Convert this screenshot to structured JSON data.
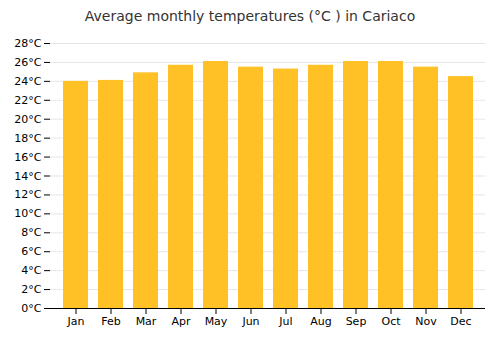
{
  "chart_data": {
    "type": "bar",
    "title": "Average monthly temperatures (°C ) in Cariaco",
    "categories": [
      "Jan",
      "Feb",
      "Mar",
      "Apr",
      "May",
      "Jun",
      "Jul",
      "Aug",
      "Sep",
      "Oct",
      "Nov",
      "Dec"
    ],
    "values": [
      24.0,
      24.1,
      24.9,
      25.7,
      26.1,
      25.5,
      25.3,
      25.7,
      26.1,
      26.1,
      25.5,
      24.5
    ],
    "color": "#FFC125",
    "ylim": [
      0,
      28
    ],
    "yticks": [
      {
        "value": 0,
        "label": "0°C"
      },
      {
        "value": 2,
        "label": "2°C"
      },
      {
        "value": 4,
        "label": "4°C"
      },
      {
        "value": 6,
        "label": "6°C"
      },
      {
        "value": 8,
        "label": "8°C"
      },
      {
        "value": 10,
        "label": "10°C"
      },
      {
        "value": 12,
        "label": "12°C"
      },
      {
        "value": 14,
        "label": "14°C"
      },
      {
        "value": 16,
        "label": "16°C"
      },
      {
        "value": 18,
        "label": "18°C"
      },
      {
        "value": 20,
        "label": "20°C"
      },
      {
        "value": 22,
        "label": "22°C"
      },
      {
        "value": 24,
        "label": "24°C"
      },
      {
        "value": 26,
        "label": "26°C"
      },
      {
        "value": 28,
        "label": "28°C"
      }
    ],
    "grid": true
  }
}
